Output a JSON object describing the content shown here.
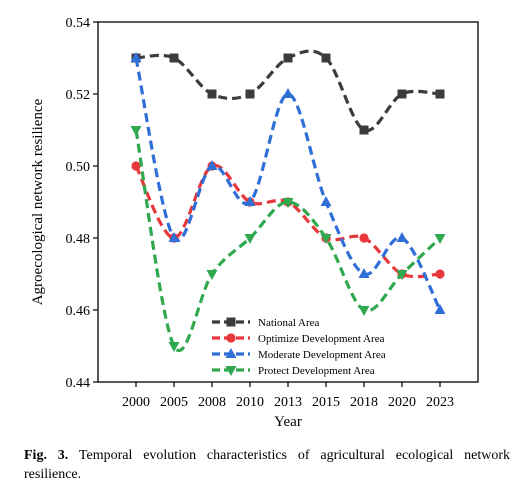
{
  "chart_data": {
    "type": "line",
    "xlabel": "Year",
    "ylabel": "Agroecological network resilience",
    "categories": [
      "2000",
      "2005",
      "2008",
      "2010",
      "2013",
      "2015",
      "2018",
      "2020",
      "2023"
    ],
    "ylim": [
      0.44,
      0.54
    ],
    "yticks": [
      0.44,
      0.46,
      0.48,
      0.5,
      0.52,
      0.54
    ],
    "ytick_labels": [
      "0.44",
      "0.46",
      "0.48",
      "0.50",
      "0.52",
      "0.54"
    ],
    "grid": false,
    "legend_position": "bottom-left",
    "series": [
      {
        "name": "National Area",
        "color": "#3c3c3c",
        "marker": "square",
        "values": [
          0.53,
          0.53,
          0.52,
          0.52,
          0.53,
          0.53,
          0.51,
          0.52,
          0.52
        ]
      },
      {
        "name": "Optimize Development Area",
        "color": "#e8383b",
        "marker": "circle",
        "values": [
          0.5,
          0.48,
          0.5,
          0.49,
          0.49,
          0.48,
          0.48,
          0.47,
          0.47
        ]
      },
      {
        "name": "Moderate Development Area",
        "color": "#2f6fd8",
        "marker": "triangle-up",
        "values": [
          0.53,
          0.48,
          0.5,
          0.49,
          0.52,
          0.49,
          0.47,
          0.48,
          0.46
        ]
      },
      {
        "name": "Protect Development Area",
        "color": "#2fa84f",
        "marker": "triangle-down",
        "values": [
          0.51,
          0.45,
          0.47,
          0.48,
          0.49,
          0.48,
          0.46,
          0.47,
          0.48
        ]
      }
    ]
  },
  "caption": {
    "label": "Fig. 3.",
    "text": "Temporal evolution characteristics of agricultural ecological network resilience."
  }
}
